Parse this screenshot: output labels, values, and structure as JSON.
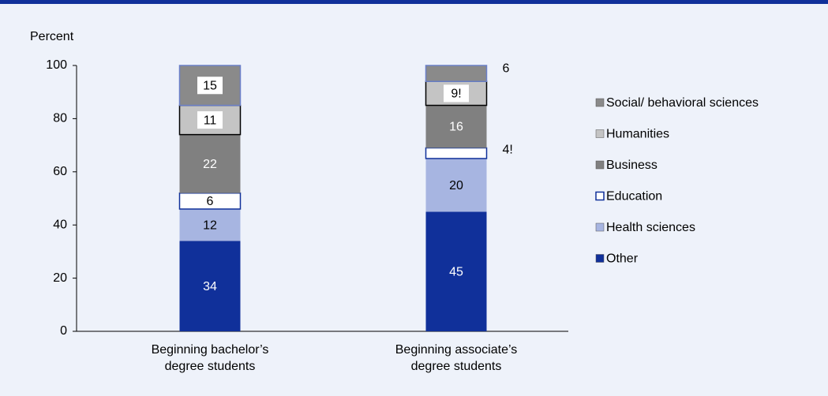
{
  "chart_data": {
    "type": "stacked_bar",
    "y_axis_label": "Percent",
    "categories": [
      "Beginning bachelor’s\ndegree students",
      "Beginning associate’s\ndegree students"
    ],
    "series": [
      {
        "name": "Other",
        "color": "#10309a",
        "values": [
          34,
          45
        ]
      },
      {
        "name": "Health sciences",
        "color": "#a7b5e1",
        "values": [
          12,
          20
        ]
      },
      {
        "name": "Education",
        "color": "#ffffff",
        "values": [
          6,
          4
        ],
        "value_labels": [
          "6",
          "4!"
        ]
      },
      {
        "name": "Business",
        "color": "#808080",
        "values": [
          22,
          16
        ]
      },
      {
        "name": "Humanities",
        "color": "#c4c4c4",
        "values": [
          11,
          9
        ],
        "value_labels": [
          "11",
          "9!"
        ]
      },
      {
        "name": "Social/ behavioral sciences",
        "color": "#8a8a8a",
        "values": [
          15,
          6
        ]
      }
    ],
    "ylim": [
      0,
      100
    ],
    "yticks": [
      0,
      20,
      40,
      60,
      80,
      100
    ]
  }
}
